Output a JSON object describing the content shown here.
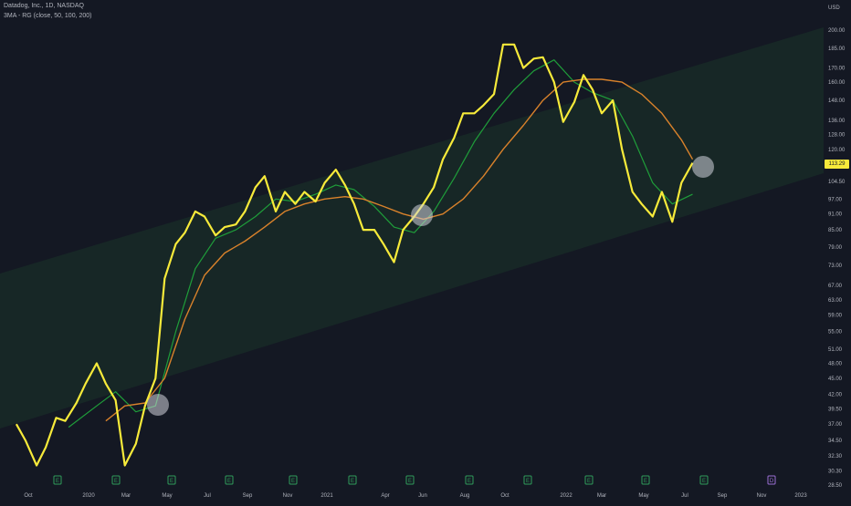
{
  "header": {
    "symbol_line": "Datadog, Inc., 1D, NASDAQ",
    "indicator_line": "3MA - RG (close, 50, 100, 200)"
  },
  "price_axis": {
    "currency": "USD",
    "last_price_tag": "113.29"
  },
  "colors": {
    "background": "#141823",
    "price": "#f7ea3a",
    "ma50": "#1f9d3a",
    "ma100": "#d9822b",
    "channel": "#1d3a2a",
    "tag": "#f7ea3a"
  },
  "chart_data": {
    "type": "line",
    "scale": "log",
    "ylim": [
      28.5,
      216
    ],
    "y_ticks": [
      "200.00",
      "185.00",
      "170.00",
      "160.00",
      "148.00",
      "136.00",
      "128.00",
      "120.00",
      "104.50",
      "97.00",
      "91.00",
      "85.00",
      "79.00",
      "73.00",
      "67.00",
      "63.00",
      "59.00",
      "55.00",
      "51.00",
      "48.00",
      "45.00",
      "42.00",
      "39.50",
      "37.00",
      "34.50",
      "32.30",
      "30.30",
      "28.50"
    ],
    "x_ticks": [
      "Oct",
      "2020",
      "Mar",
      "May",
      "Jul",
      "Sep",
      "Nov",
      "2021",
      "Apr",
      "Jun",
      "Aug",
      "Oct",
      "2022",
      "Mar",
      "May",
      "Jul",
      "Sep",
      "Nov",
      "2023"
    ],
    "earnings_markers": [
      "E",
      "E",
      "E",
      "E",
      "E",
      "E",
      "E",
      "E",
      "E",
      "E",
      "E",
      "E",
      "D"
    ],
    "series": [
      {
        "name": "close",
        "x": [
          "2019-10-01",
          "2019-10-15",
          "2019-11-01",
          "2019-11-15",
          "2019-12-01",
          "2019-12-15",
          "2020-01-01",
          "2020-01-15",
          "2020-02-01",
          "2020-02-15",
          "2020-03-01",
          "2020-03-15",
          "2020-04-01",
          "2020-04-15",
          "2020-05-01",
          "2020-05-15",
          "2020-06-01",
          "2020-06-15",
          "2020-07-01",
          "2020-07-15",
          "2020-08-01",
          "2020-08-15",
          "2020-09-01",
          "2020-09-15",
          "2020-10-01",
          "2020-10-15",
          "2020-11-01",
          "2020-11-15",
          "2020-12-01",
          "2020-12-15",
          "2021-01-01",
          "2021-01-15",
          "2021-02-01",
          "2021-02-15",
          "2021-03-01",
          "2021-03-15",
          "2021-04-01",
          "2021-04-15",
          "2021-05-01",
          "2021-05-15",
          "2021-06-01",
          "2021-06-15",
          "2021-07-01",
          "2021-07-15",
          "2021-08-01",
          "2021-08-15",
          "2021-09-01",
          "2021-09-15",
          "2021-10-01",
          "2021-10-15",
          "2021-11-01",
          "2021-11-15",
          "2021-12-01",
          "2021-12-15",
          "2022-01-01",
          "2022-01-15",
          "2022-02-01",
          "2022-02-15",
          "2022-03-01",
          "2022-03-15",
          "2022-04-01",
          "2022-04-15",
          "2022-05-01",
          "2022-05-15",
          "2022-06-01",
          "2022-06-15",
          "2022-07-01",
          "2022-07-15",
          "2022-08-01"
        ],
        "y": [
          37.0,
          34.5,
          31.0,
          33.5,
          38.0,
          37.5,
          40.5,
          44.0,
          48.0,
          44.0,
          41.0,
          31.0,
          34.0,
          40.0,
          45.0,
          69.0,
          80.0,
          84.0,
          92.0,
          90.0,
          83.0,
          86.0,
          87.0,
          92.0,
          102.0,
          107.0,
          92.0,
          100.0,
          95.0,
          100.0,
          96.0,
          104.0,
          110.0,
          103.0,
          95.0,
          85.0,
          85.0,
          80.0,
          74.0,
          85.0,
          90.0,
          95.0,
          102.0,
          115.0,
          126.0,
          140.0,
          140.0,
          145.0,
          152.0,
          188.0,
          188.0,
          170.0,
          177.0,
          178.0,
          160.0,
          135.0,
          147.0,
          165.0,
          155.0,
          140.0,
          148.0,
          120.0,
          100.0,
          95.0,
          90.0,
          100.0,
          88.0,
          104.0,
          113.29
        ]
      },
      {
        "name": "MA 50",
        "x": [
          "2019-12-20",
          "2020-02-01",
          "2020-03-01",
          "2020-04-01",
          "2020-05-01",
          "2020-06-01",
          "2020-07-01",
          "2020-08-01",
          "2020-09-01",
          "2020-10-01",
          "2020-11-01",
          "2020-12-01",
          "2021-01-01",
          "2021-02-01",
          "2021-03-01",
          "2021-04-01",
          "2021-05-01",
          "2021-06-01",
          "2021-07-01",
          "2021-08-01",
          "2021-09-01",
          "2021-10-01",
          "2021-11-01",
          "2021-12-01",
          "2022-01-01",
          "2022-02-01",
          "2022-03-01",
          "2022-04-01",
          "2022-05-01",
          "2022-06-01",
          "2022-07-01",
          "2022-08-01"
        ],
        "y": [
          36.5,
          40.0,
          42.5,
          39.0,
          40.0,
          55.0,
          72.0,
          82.0,
          85.0,
          90.0,
          97.0,
          96.0,
          99.0,
          103.0,
          101.0,
          94.0,
          86.0,
          84.0,
          92.0,
          106.0,
          124.0,
          140.0,
          155.0,
          168.0,
          176.0,
          160.0,
          153.0,
          148.0,
          127.0,
          104.0,
          95.0,
          99.0
        ]
      },
      {
        "name": "MA 100",
        "x": [
          "2020-02-15",
          "2020-03-15",
          "2020-04-15",
          "2020-05-15",
          "2020-06-15",
          "2020-07-15",
          "2020-08-15",
          "2020-09-15",
          "2020-10-15",
          "2020-11-15",
          "2020-12-15",
          "2021-01-15",
          "2021-02-15",
          "2021-03-15",
          "2021-04-15",
          "2021-05-15",
          "2021-06-15",
          "2021-07-15",
          "2021-08-15",
          "2021-09-15",
          "2021-10-15",
          "2021-11-15",
          "2021-12-15",
          "2022-01-15",
          "2022-02-15",
          "2022-03-15",
          "2022-04-15",
          "2022-05-15",
          "2022-06-15",
          "2022-07-15",
          "2022-08-01"
        ],
        "y": [
          37.5,
          40.0,
          40.5,
          45.0,
          58.0,
          70.0,
          77.0,
          81.0,
          86.0,
          92.0,
          95.0,
          97.0,
          98.0,
          97.0,
          94.0,
          91.0,
          89.0,
          91.0,
          97.0,
          107.0,
          120.0,
          133.0,
          148.0,
          160.0,
          162.0,
          162.0,
          160.0,
          152.0,
          140.0,
          125.0,
          115.0
        ]
      }
    ]
  }
}
